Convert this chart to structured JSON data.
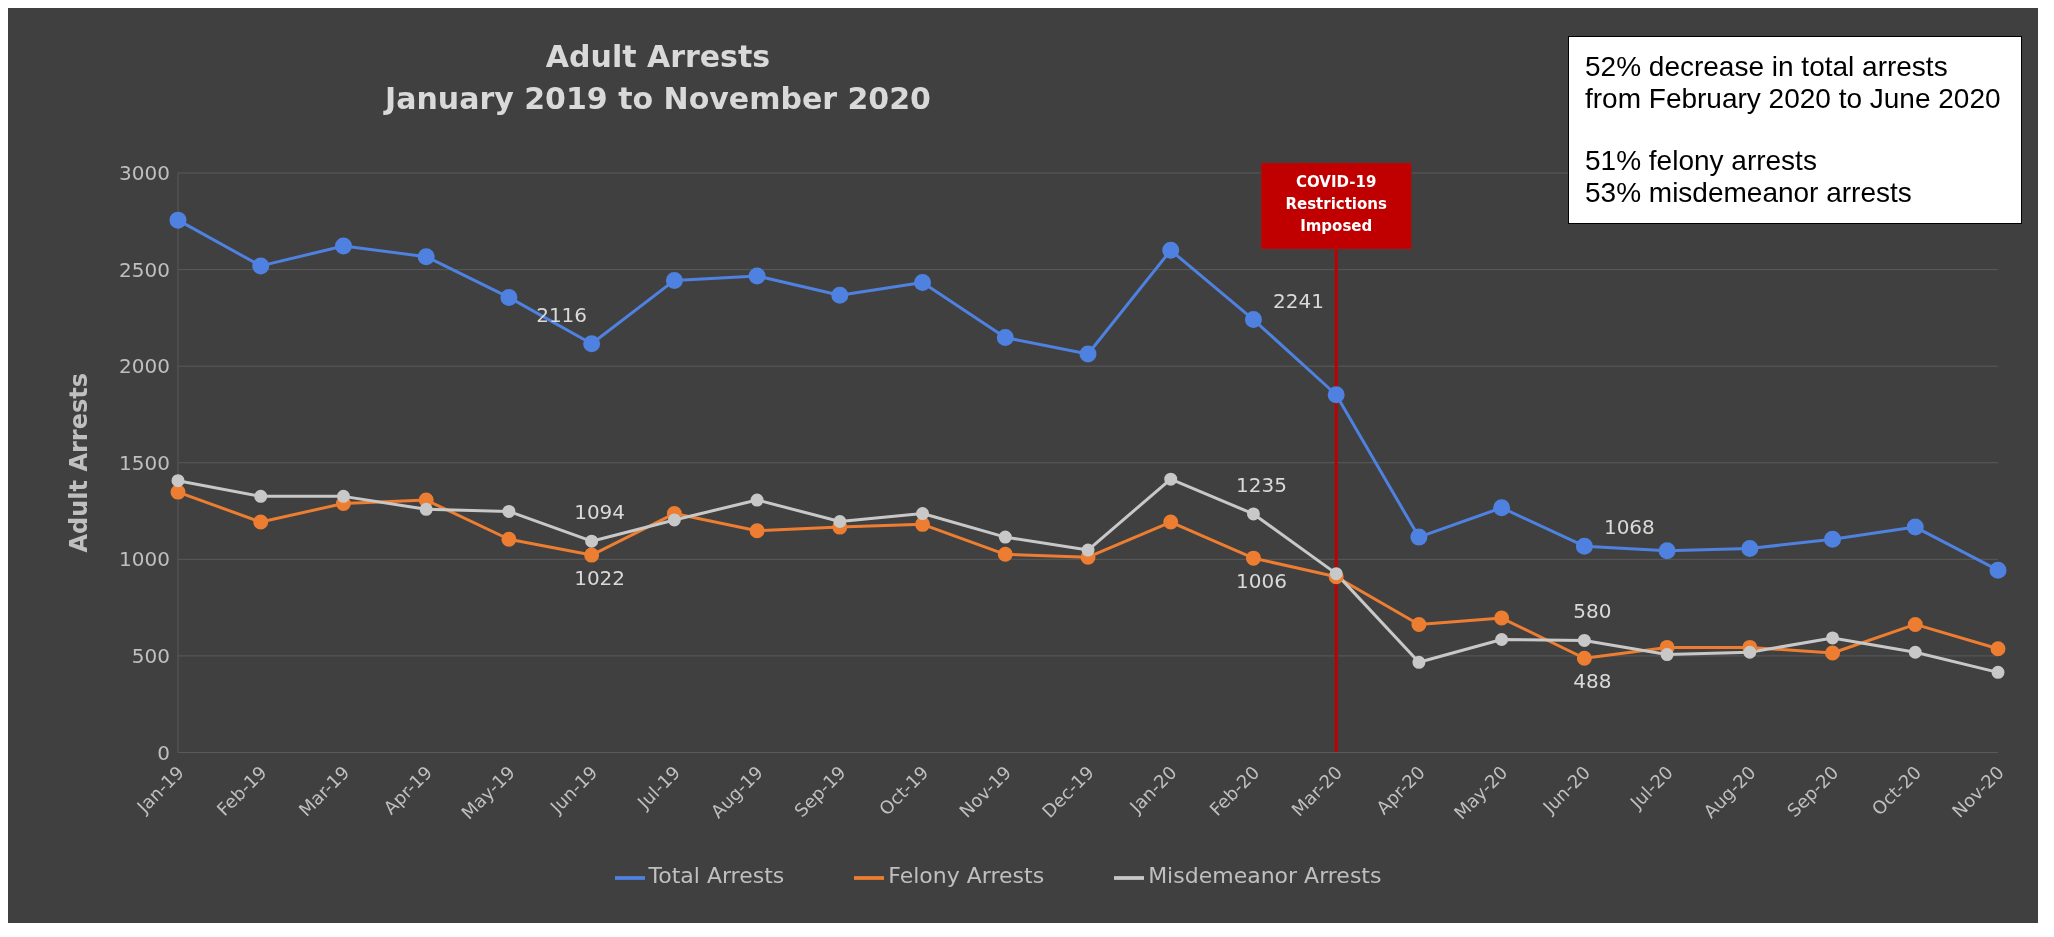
{
  "chart_data": {
    "type": "line",
    "title": "Adult Arrests",
    "subtitle": "January 2019 to November 2020",
    "ylabel": "Adult Arrests",
    "categories": [
      "Jan-19",
      "Feb-19",
      "Mar-19",
      "Apr-19",
      "May-19",
      "Jun-19",
      "Jul-19",
      "Aug-19",
      "Sep-19",
      "Oct-19",
      "Nov-19",
      "Dec-19",
      "Jan-20",
      "Feb-20",
      "Mar-20",
      "Apr-20",
      "May-20",
      "Jun-20",
      "Jul-20",
      "Aug-20",
      "Sep-20",
      "Oct-20",
      "Nov-20"
    ],
    "series": [
      {
        "name": "Total Arrests",
        "color": "#4f81e0",
        "values": [
          2756,
          2519,
          2622,
          2567,
          2356,
          2116,
          2444,
          2467,
          2367,
          2433,
          2148,
          2063,
          2600,
          2241,
          1852,
          1115,
          1267,
          1068,
          1044,
          1056,
          1104,
          1167,
          944
        ],
        "value_labels": [
          null,
          null,
          null,
          null,
          null,
          "2116",
          null,
          null,
          null,
          null,
          null,
          null,
          null,
          "2241",
          null,
          null,
          null,
          "1068",
          null,
          null,
          null,
          null,
          null
        ]
      },
      {
        "name": "Felony Arrests",
        "color": "#ed7d31",
        "values": [
          1348,
          1193,
          1289,
          1307,
          1104,
          1022,
          1237,
          1148,
          1167,
          1181,
          1026,
          1011,
          1193,
          1006,
          910,
          663,
          696,
          488,
          544,
          544,
          515,
          663,
          537
        ],
        "value_labels": [
          null,
          null,
          null,
          null,
          null,
          "1022",
          null,
          null,
          null,
          null,
          null,
          null,
          null,
          "1006",
          null,
          null,
          null,
          "488",
          null,
          null,
          null,
          null,
          null
        ]
      },
      {
        "name": "Misdemeanor Arrests",
        "color": "#c8c8c8",
        "values": [
          1407,
          1326,
          1326,
          1259,
          1248,
          1094,
          1204,
          1307,
          1196,
          1237,
          1115,
          1048,
          1415,
          1235,
          926,
          467,
          585,
          580,
          507,
          519,
          593,
          519,
          415
        ],
        "value_labels": [
          null,
          null,
          null,
          null,
          null,
          "1094",
          null,
          null,
          null,
          null,
          null,
          null,
          null,
          "1235",
          null,
          null,
          null,
          "580",
          null,
          null,
          null,
          null,
          null
        ]
      }
    ],
    "ylim": [
      0,
      3000
    ],
    "yticks": [
      0,
      500,
      1000,
      1500,
      2000,
      2500,
      3000
    ],
    "grid": "y",
    "legend": "bottom",
    "marker": "circle",
    "line_style": "solid",
    "ref_lines": [
      {
        "axis": "x",
        "value": "Mar-20",
        "label": "COVID-19 Restrictions Imposed",
        "color": "#c00000"
      }
    ],
    "annotations": [
      "52% decrease in total arrests from February 2020 to June 2020",
      "51% felony arrests\n53% misdemeanor arrests"
    ]
  }
}
